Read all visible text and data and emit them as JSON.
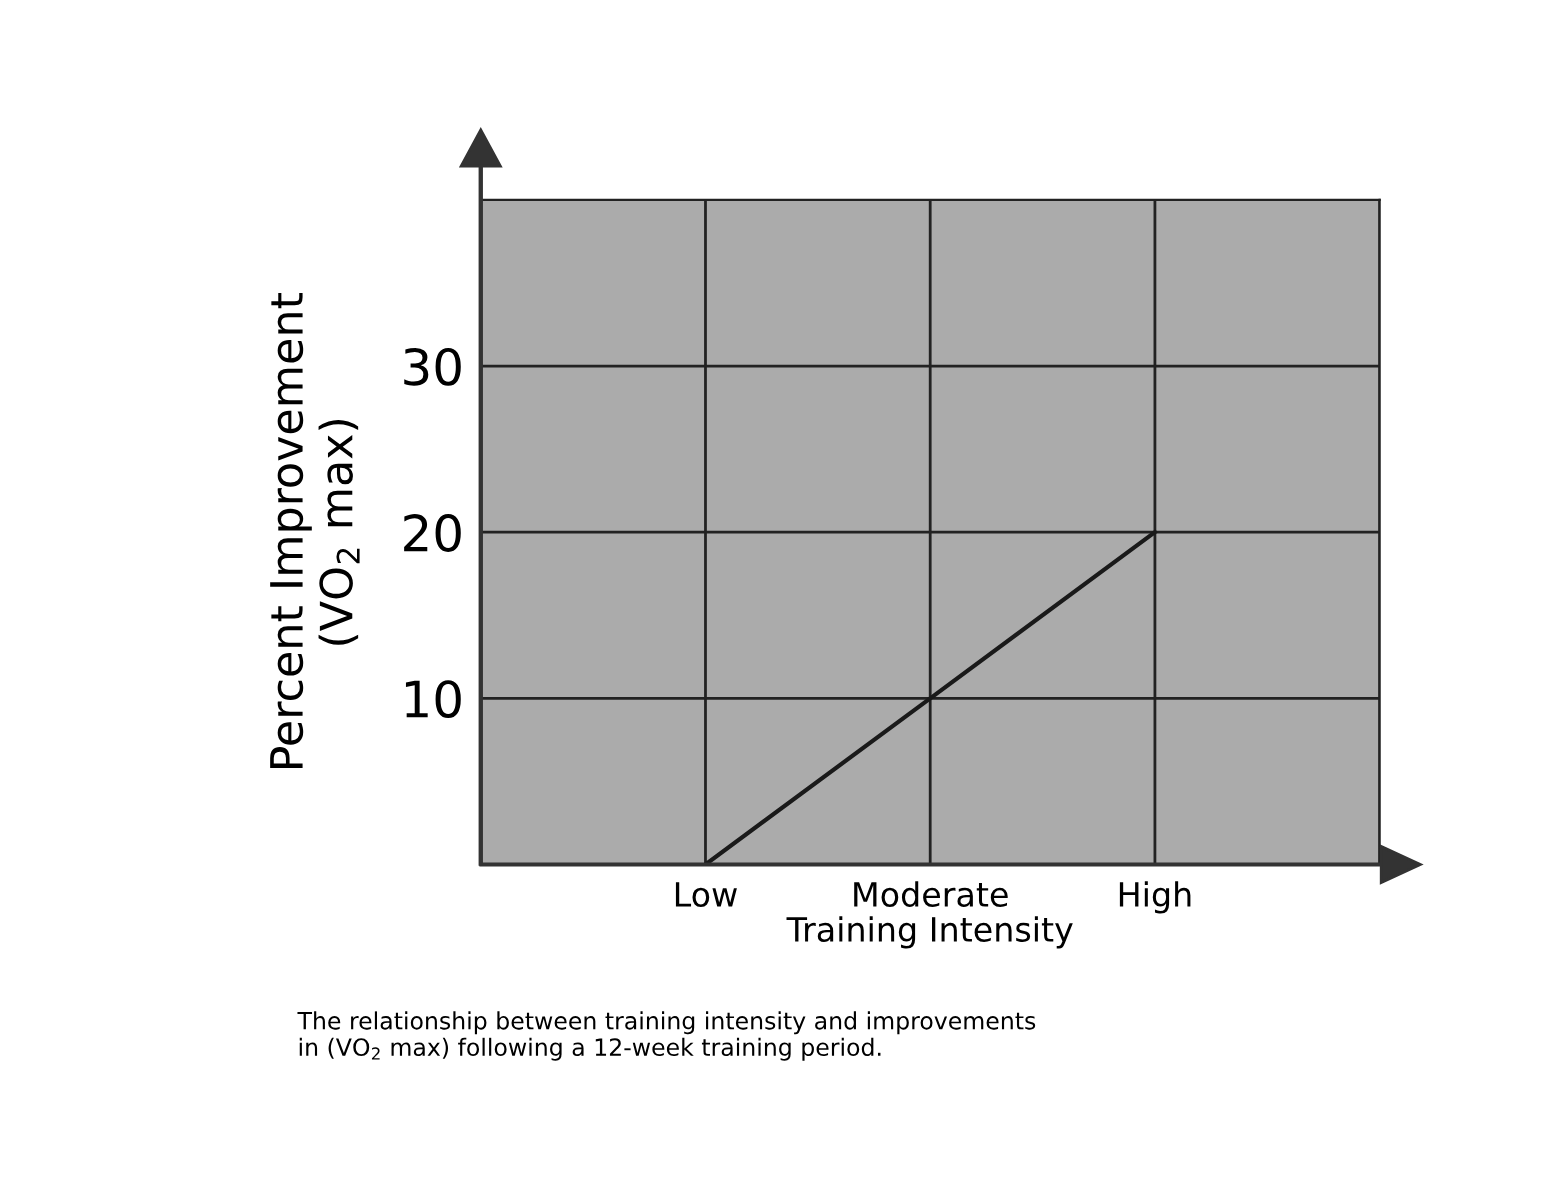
{
  "chart_data": {
    "type": "line",
    "xlabel": "Training Intensity",
    "ylabel": "Percent Improvement\n(VO$_{2}$ max)",
    "categories": [
      null,
      "Low",
      "Moderate",
      "High",
      null
    ],
    "series": [
      {
        "color": "#1a1a1a",
        "values": [
          null,
          0,
          10,
          20,
          null
        ]
      }
    ],
    "ylim": [
      0,
      40
    ],
    "yticks": [
      10,
      20,
      30
    ],
    "grid": true,
    "annotations": [
      "The relationship between training intensity and improvements\nin (VO$_{2}$ max) following a 12-week training period."
    ]
  }
}
